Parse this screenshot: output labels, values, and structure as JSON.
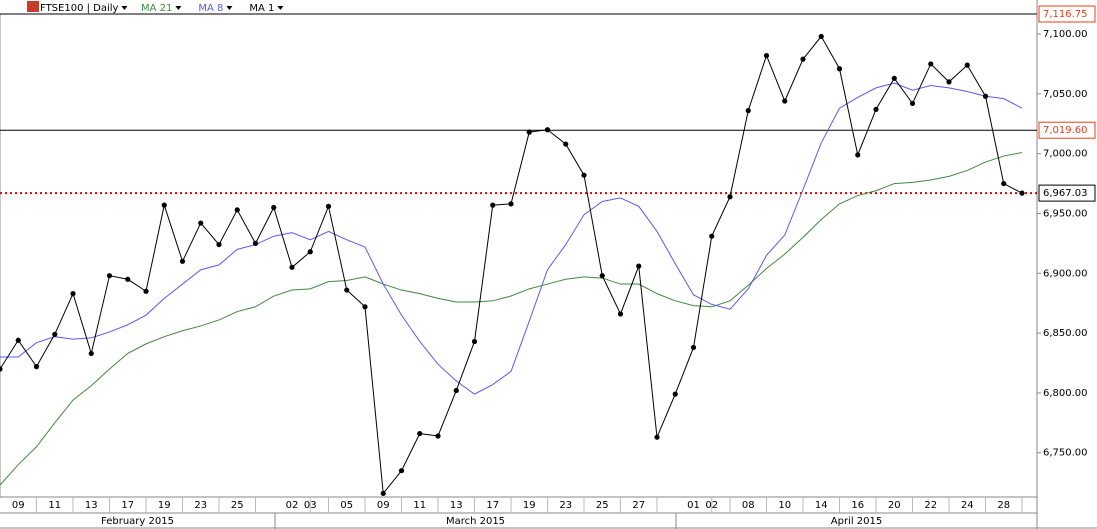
{
  "chart_data": {
    "type": "line",
    "title": "FTSE100 | Daily",
    "categories": [
      null,
      "09",
      null,
      "11",
      null,
      "13",
      null,
      "17",
      null,
      "19",
      null,
      "23",
      null,
      "25",
      null,
      null,
      "02",
      "03",
      null,
      "05",
      null,
      "09",
      null,
      "11",
      null,
      "13",
      null,
      "17",
      null,
      "19",
      null,
      "23",
      null,
      "25",
      null,
      "27",
      null,
      null,
      "01",
      "02",
      null,
      "08",
      null,
      "10",
      null,
      "14",
      null,
      "16",
      null,
      "20",
      null,
      "22",
      null,
      "24",
      null,
      "28",
      null
    ],
    "months": [
      "February 2015",
      "March 2015",
      "April 2015"
    ],
    "series": [
      {
        "name": "MA 1",
        "color": "#000000",
        "markers": true,
        "values": [
          6820,
          6844,
          6822,
          6849,
          6883,
          6833,
          6898,
          6895,
          6885,
          6957,
          6910,
          6942,
          6924,
          6953,
          6925,
          6955,
          6905,
          6918,
          6956,
          6886,
          6872,
          6716,
          6735,
          6766,
          6764,
          6802,
          6843,
          6957,
          6958,
          7018,
          7020,
          7008,
          6982,
          6898,
          6866,
          6906,
          6763,
          6799,
          6838,
          6931,
          6964,
          7036,
          7082,
          7044,
          7079,
          7098,
          7071,
          6999,
          7037,
          7063,
          7042,
          7075,
          7060,
          7074,
          7048,
          6975,
          6967
        ]
      },
      {
        "name": "MA 8",
        "color": "#5a5af0",
        "markers": false,
        "values": [
          6830,
          6830,
          6842,
          6847,
          6845,
          6846,
          6851,
          6857,
          6865,
          6879,
          6891,
          6903,
          6907,
          6920,
          6924,
          6931,
          6934,
          6928,
          6935,
          6928,
          6922,
          6891,
          6865,
          6843,
          6824,
          6810,
          6799,
          6807,
          6818,
          6860,
          6903,
          6924,
          6949,
          6960,
          6963,
          6956,
          6935,
          6908,
          6882,
          6874,
          6870,
          6887,
          6915,
          6932,
          6970,
          7009,
          7038,
          7047,
          7055,
          7059,
          7053,
          7057,
          7055,
          7052,
          7048,
          7046,
          7038
        ]
      },
      {
        "name": "MA 21",
        "color": "#3e8a3e",
        "markers": false,
        "values": [
          6723,
          6740,
          6755,
          6775,
          6794,
          6806,
          6820,
          6833,
          6841,
          6847,
          6852,
          6856,
          6861,
          6868,
          6872,
          6881,
          6886,
          6887,
          6893,
          6894,
          6897,
          6891,
          6886,
          6883,
          6879,
          6876,
          6876,
          6877,
          6881,
          6887,
          6891,
          6895,
          6897,
          6896,
          6891,
          6891,
          6883,
          6877,
          6873,
          6872,
          6877,
          6890,
          6904,
          6916,
          6930,
          6945,
          6958,
          6965,
          6969,
          6975,
          6976,
          6978,
          6981,
          6986,
          6993,
          6998,
          7001
        ]
      }
    ],
    "ylim": [
      6713,
      7116.75
    ],
    "yticks": [
      {
        "value": 6750,
        "label": "6,750.00"
      },
      {
        "value": 6800,
        "label": "6,800.00"
      },
      {
        "value": 6850,
        "label": "6,850.00"
      },
      {
        "value": 6900,
        "label": "6,900.00"
      },
      {
        "value": 6950,
        "label": "6,950.00"
      },
      {
        "value": 7000,
        "label": "7,000.00"
      },
      {
        "value": 7050,
        "label": "7,050.00"
      },
      {
        "value": 7100,
        "label": "7,100.00"
      }
    ],
    "hlines": [
      {
        "value": 7116.75,
        "label": "7,116.75",
        "color": "#000000",
        "label_color": "#e0401a",
        "dashed": false
      },
      {
        "value": 7019.6,
        "label": "7,019.60",
        "color": "#000000",
        "label_color": "#e0401a",
        "dashed": false
      },
      {
        "value": 6967.03,
        "label": "6,967.03",
        "color": "#e00000",
        "label_color": "#000000",
        "dashed": true
      }
    ]
  }
}
